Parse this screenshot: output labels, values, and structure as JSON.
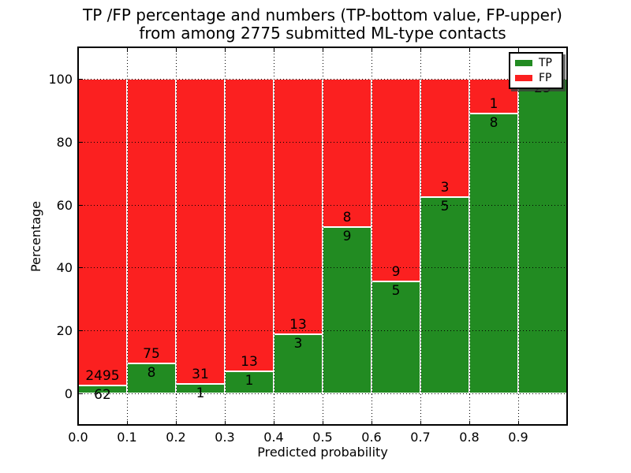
{
  "figure": {
    "title_line1": "TP /FP percentage and numbers (TP-bottom value, FP-upper)",
    "title_line2": "from among 2775 submitted ML-type contacts",
    "xlabel": "Predicted probability",
    "ylabel": "Percentage"
  },
  "legend": {
    "items": [
      {
        "label": "TP",
        "color": "#228b22"
      },
      {
        "label": "FP",
        "color": "#fb2020"
      }
    ]
  },
  "chart_data": {
    "type": "bar",
    "stacked": true,
    "normalized": "each bar scaled to 100%",
    "title": "TP /FP percentage and numbers (TP-bottom value, FP-upper) from among 2775 submitted ML-type contacts",
    "xlabel": "Predicted probability",
    "ylabel": "Percentage",
    "total_contacts": 2775,
    "bin_edges": [
      0.0,
      0.1,
      0.2,
      0.3,
      0.4,
      0.5,
      0.6,
      0.7,
      0.8,
      0.9,
      1.0
    ],
    "categories": [
      "0.0-0.1",
      "0.1-0.2",
      "0.2-0.3",
      "0.3-0.4",
      "0.4-0.5",
      "0.5-0.6",
      "0.6-0.7",
      "0.7-0.8",
      "0.8-0.9",
      "0.9-1.0"
    ],
    "series": [
      {
        "name": "TP",
        "color": "#228b22",
        "values": [
          62,
          8,
          1,
          1,
          3,
          9,
          5,
          5,
          8,
          25
        ]
      },
      {
        "name": "FP",
        "color": "#fb2020",
        "values": [
          2495,
          75,
          31,
          13,
          13,
          8,
          9,
          3,
          1,
          0
        ]
      }
    ],
    "tp_percent_of_bin": [
      2.4,
      9.6,
      3.1,
      7.1,
      18.8,
      52.9,
      35.7,
      62.5,
      88.9,
      100.0
    ],
    "x_ticks": [
      "0.0",
      "0.1",
      "0.2",
      "0.3",
      "0.4",
      "0.5",
      "0.6",
      "0.7",
      "0.8",
      "0.9"
    ],
    "y_ticks": [
      0,
      20,
      40,
      60,
      80,
      100
    ],
    "xlim": [
      0.0,
      1.0
    ],
    "ylim": [
      -10,
      110
    ],
    "grid": "dotted, on",
    "legend_position": "upper right",
    "bar_edge_color": "#ffffff"
  }
}
